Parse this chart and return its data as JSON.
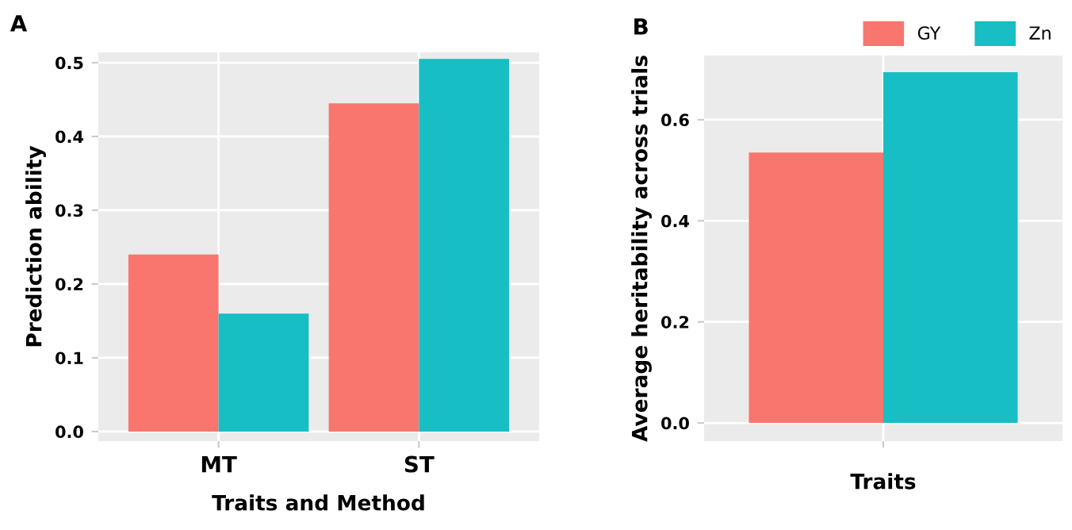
{
  "chart_data": [
    {
      "type": "bar",
      "title": "A",
      "xlabel": "Traits and Method",
      "ylabel": "Prediction ability",
      "categories": [
        "MT",
        "ST"
      ],
      "series": [
        {
          "color": "#f8766d",
          "values": [
            0.24,
            0.445
          ]
        },
        {
          "color": "#17bec4",
          "values": [
            0.16,
            0.505
          ]
        }
      ],
      "ylim": [
        -0.013,
        0.514
      ],
      "yticks": [
        {
          "value": 0,
          "label": "0.0"
        },
        0.1,
        0.2,
        0.3,
        0.4,
        0.5
      ],
      "grid": true,
      "legend": false
    },
    {
      "type": "bar",
      "title": "B",
      "xlabel": "Traits",
      "ylabel": "Average heritability across trials",
      "categories": [
        null
      ],
      "series": [
        {
          "name": "GY",
          "color": "#f8766d",
          "values": [
            0.535
          ]
        },
        {
          "name": "Zn",
          "color": "#17bec4",
          "values": [
            0.694
          ]
        }
      ],
      "ylim": [
        -0.036,
        0.727
      ],
      "yticks": [
        {
          "value": 0,
          "label": "0.0"
        },
        0.2,
        0.4,
        0.6
      ],
      "grid": true,
      "legend": "top right"
    }
  ]
}
